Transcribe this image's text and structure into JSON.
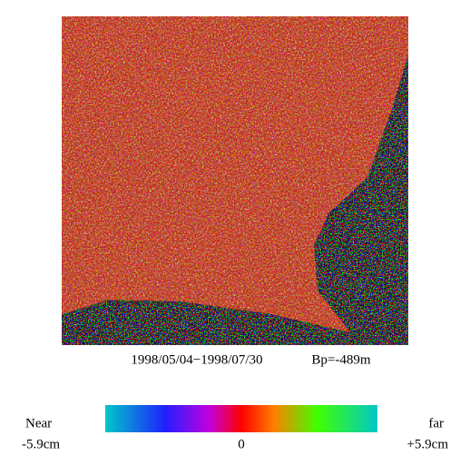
{
  "caption": {
    "dates": "1998/05/04−1998/07/30",
    "baseline": "Bp=-489m"
  },
  "colorbar": {
    "left_label": "Near",
    "left_value": "-5.9cm",
    "center_value": "0",
    "right_label": "far",
    "right_value": "+5.9cm"
  }
}
